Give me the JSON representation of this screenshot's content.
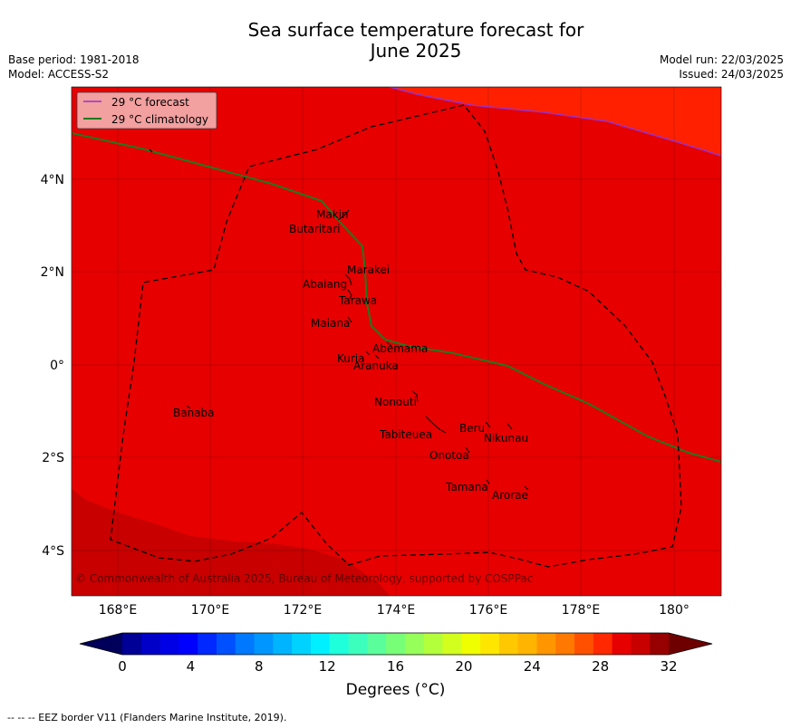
{
  "title_line1": "Sea surface temperature forecast for",
  "title_line2": "June 2025",
  "meta_left": {
    "base_period": "Base period: 1981-2018",
    "model": "Model: ACCESS-S2"
  },
  "meta_right": {
    "model_run": "Model run: 22/03/2025",
    "issued": "Issued: 24/03/2025"
  },
  "legend": [
    {
      "label": "29 °C  forecast",
      "color": "#9b30c8"
    },
    {
      "label": "29 °C  climatology",
      "color": "#1e7a1e"
    }
  ],
  "copyright": "© Commonwealth of Australia 2025, Bureau of Meteorology, supported by COSPPac",
  "lon_ticks": [
    "168°E",
    "170°E",
    "172°E",
    "174°E",
    "176°E",
    "178°E",
    "180°"
  ],
  "lat_ticks": [
    "4°N",
    "2°N",
    "0°",
    "2°S",
    "4°S"
  ],
  "islands": [
    "Makin",
    "Butaritari",
    "Marakei",
    "Abaiang",
    "Tarawa",
    "Maiana",
    "Abemama",
    "Kuria",
    "Aranuka",
    "Nonouti",
    "Banaba",
    "Tabiteuea",
    "Beru",
    "Nikunau",
    "Onotoa",
    "Tamana",
    "Arorae"
  ],
  "colorbar": {
    "tick_labels": [
      "0",
      "4",
      "8",
      "12",
      "16",
      "20",
      "24",
      "28",
      "32"
    ],
    "label": "Degrees (°C)",
    "colors": [
      "#000096",
      "#0000c8",
      "#0000e6",
      "#0000ff",
      "#0028ff",
      "#0050ff",
      "#0078ff",
      "#0096ff",
      "#00b4ff",
      "#00d2ff",
      "#00f0ff",
      "#1effdc",
      "#3cffbe",
      "#5aff9b",
      "#78ff78",
      "#96ff5a",
      "#b4ff3c",
      "#d2ff1e",
      "#f0ff00",
      "#ffe600",
      "#ffc800",
      "#ffb400",
      "#ff9600",
      "#ff7800",
      "#ff5000",
      "#ff2800",
      "#e60000",
      "#c80000",
      "#960000"
    ],
    "under_color": "#00005a",
    "over_color": "#6e0000"
  },
  "footnote": "--  --  -- EEZ border V11 (Flanders Marine Institute, 2019)."
}
